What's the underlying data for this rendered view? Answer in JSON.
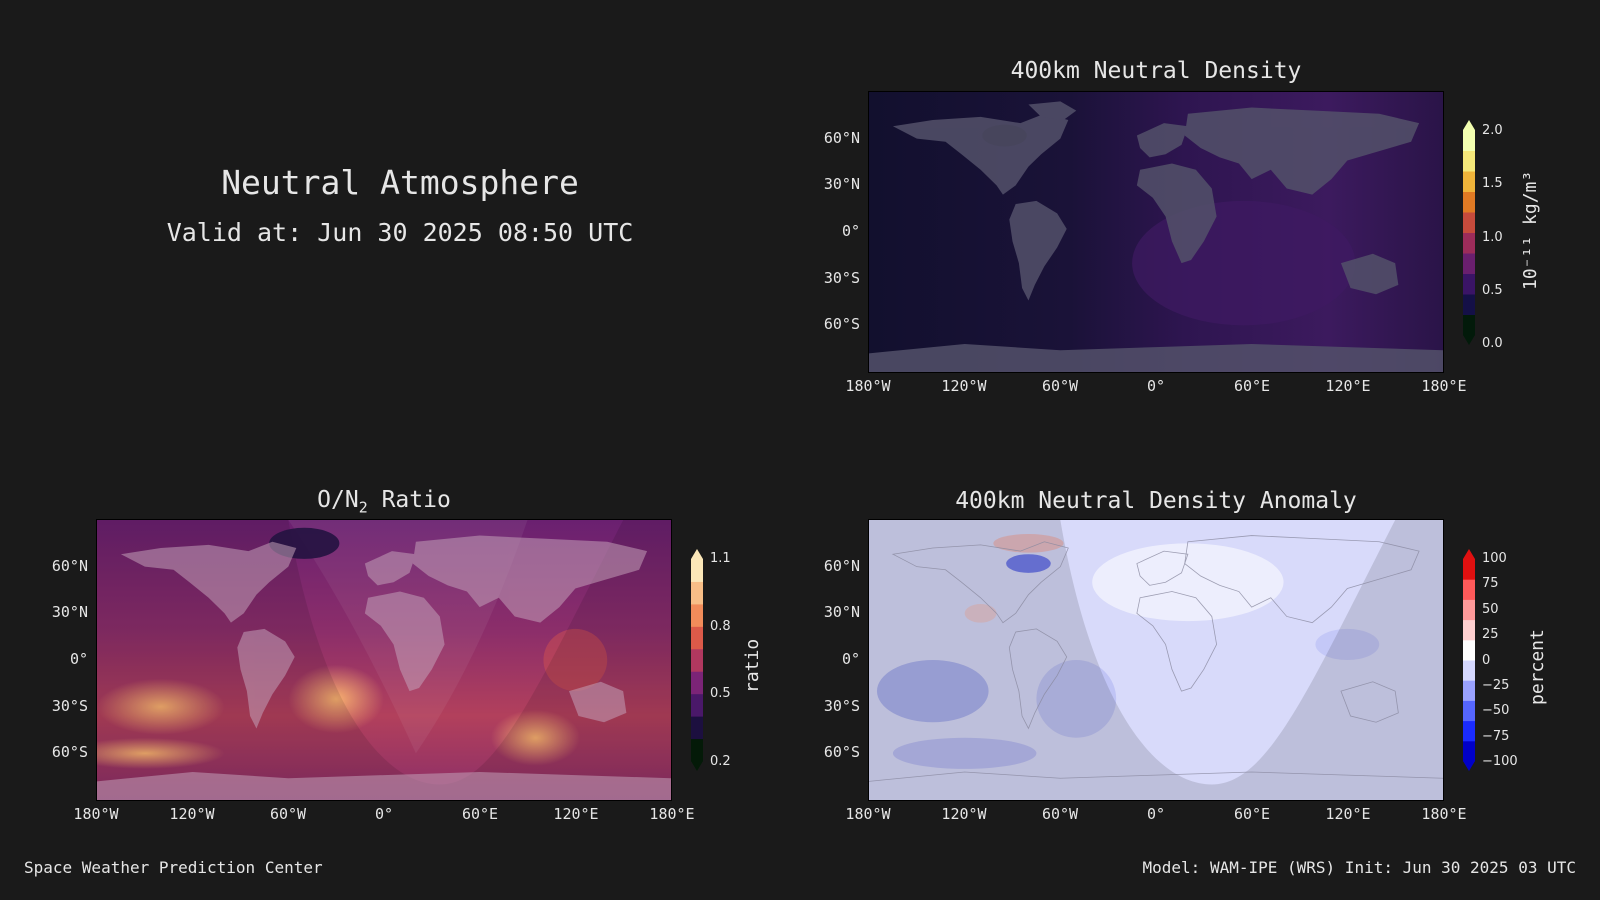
{
  "header": {
    "title": "Neutral Atmosphere",
    "valid": "Valid at: Jun 30 2025 08:50 UTC"
  },
  "footer": {
    "left": "Space Weather Prediction Center",
    "right": "Model: WAM-IPE (WRS) Init: Jun 30 2025 03 UTC"
  },
  "axes": {
    "lat_ticks": [
      "60°N",
      "30°N",
      "0°",
      "30°S",
      "60°S"
    ],
    "lon_ticks": [
      "180°W",
      "120°W",
      "60°W",
      "0°",
      "60°E",
      "120°E",
      "180°E"
    ]
  },
  "panels": {
    "density": {
      "title": "400km Neutral Density",
      "colorbar_ticks": [
        "2.0",
        "1.5",
        "1.0",
        "0.5",
        "0.0"
      ],
      "colorbar_label": "10⁻¹¹ kg/m³",
      "colormap": [
        "#021a0a",
        "#141047",
        "#3a1466",
        "#6a1f6e",
        "#9c2c5a",
        "#c64b3c",
        "#e07a24",
        "#efb43a",
        "#f5e87a",
        "#f3ffb0"
      ]
    },
    "on2": {
      "title_prefix": "O/N",
      "title_sub": "2",
      "title_suffix": " Ratio",
      "colorbar_ticks": [
        "1.1",
        "0.8",
        "0.5",
        "0.2"
      ],
      "colorbar_label": "ratio",
      "colormap": [
        "#041a08",
        "#1c0f3f",
        "#4a1869",
        "#7b2477",
        "#b0385f",
        "#dc5a49",
        "#f28c5a",
        "#f8be87",
        "#fbe7b8"
      ]
    },
    "anomaly": {
      "title": "400km Neutral Density Anomaly",
      "colorbar_ticks": [
        "100",
        "75",
        "50",
        "25",
        "0",
        "−25",
        "−50",
        "−75",
        "−100"
      ],
      "colorbar_label": "percent",
      "colormap": [
        "#0000c8",
        "#1a2bff",
        "#5566ff",
        "#9aa2ff",
        "#d5d8ff",
        "#ffffff",
        "#ffd0d0",
        "#ff9a9a",
        "#ff5a5a",
        "#e01010"
      ]
    }
  }
}
